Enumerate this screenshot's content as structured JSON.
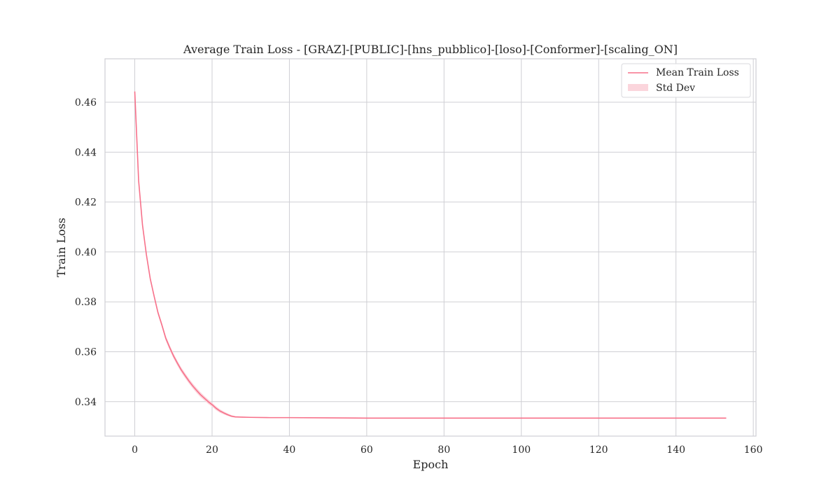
{
  "chart_data": {
    "type": "line",
    "title": "Average Train Loss - [GRAZ]-[PUBLIC]-[hns_pubblico]-[loso]-[Conformer]-[scaling_ON]",
    "xlabel": "Epoch",
    "ylabel": "Train Loss",
    "xlim": [
      -7.7,
      160.7
    ],
    "ylim": [
      0.3262,
      0.4774
    ],
    "xticks": [
      0,
      20,
      40,
      60,
      80,
      100,
      120,
      140,
      160
    ],
    "yticks": [
      0.34,
      0.36,
      0.38,
      0.4,
      0.42,
      0.44,
      0.46
    ],
    "xtick_labels": [
      "0",
      "20",
      "40",
      "60",
      "80",
      "100",
      "120",
      "140",
      "160"
    ],
    "ytick_labels": [
      "0.34",
      "0.36",
      "0.38",
      "0.40",
      "0.42",
      "0.44",
      "0.46"
    ],
    "grid": true,
    "legend_position": "top-right",
    "legend": [
      "Mean Train Loss",
      "Std Dev"
    ],
    "series": [
      {
        "name": "Mean Train Loss",
        "color": "#f7718a",
        "band_color": "#fbd5dc",
        "x": [
          0,
          1,
          2,
          3,
          4,
          5,
          6,
          7,
          8,
          9,
          10,
          11,
          12,
          13,
          14,
          15,
          16,
          17,
          18,
          19,
          20,
          21,
          22,
          23,
          24,
          25,
          26,
          28,
          30,
          35,
          40,
          50,
          60,
          80,
          100,
          120,
          140,
          153
        ],
        "y": [
          0.4643,
          0.4285,
          0.4108,
          0.399,
          0.3893,
          0.3823,
          0.3757,
          0.3708,
          0.3655,
          0.3618,
          0.3584,
          0.3555,
          0.3528,
          0.3505,
          0.3483,
          0.3463,
          0.3445,
          0.3428,
          0.3414,
          0.34,
          0.3388,
          0.3374,
          0.3363,
          0.3355,
          0.3348,
          0.3342,
          0.3339,
          0.3338,
          0.3337,
          0.3336,
          0.3336,
          0.3335,
          0.3334,
          0.3334,
          0.3334,
          0.3334,
          0.3334,
          0.3334
        ],
        "std": [
          0.0006,
          0.0007,
          0.0008,
          0.0008,
          0.0008,
          0.0009,
          0.0009,
          0.0009,
          0.001,
          0.001,
          0.001,
          0.001,
          0.001,
          0.001,
          0.001,
          0.001,
          0.001,
          0.001,
          0.0009,
          0.0009,
          0.0008,
          0.0008,
          0.0007,
          0.0006,
          0.0005,
          0.0004,
          0.0003,
          0.0002,
          0.0001,
          0.0001,
          0.0001,
          0.0001,
          0.0001,
          0.0001,
          0.0001,
          0.0001,
          0.0001,
          0.0001
        ]
      }
    ]
  }
}
